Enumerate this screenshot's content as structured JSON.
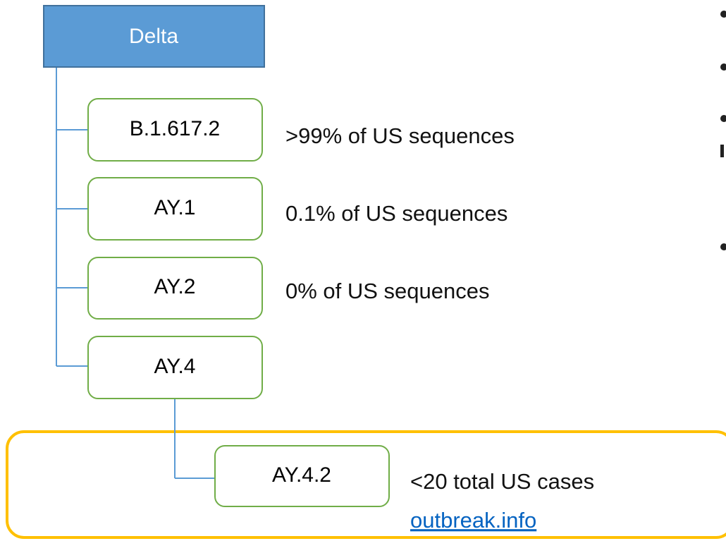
{
  "nodes": [
    {
      "label": "Delta"
    },
    {
      "label": "B.1.617.2"
    },
    {
      "label": "AY.1"
    },
    {
      "label": "AY.2"
    },
    {
      "label": "AY.4"
    },
    {
      "label": "AY.4.2"
    }
  ],
  "notes": [
    ">99% of US sequences",
    "0.1% of US sequences",
    "0% of US sequences",
    "<20 total US cases"
  ],
  "link": "outbreak.info"
}
